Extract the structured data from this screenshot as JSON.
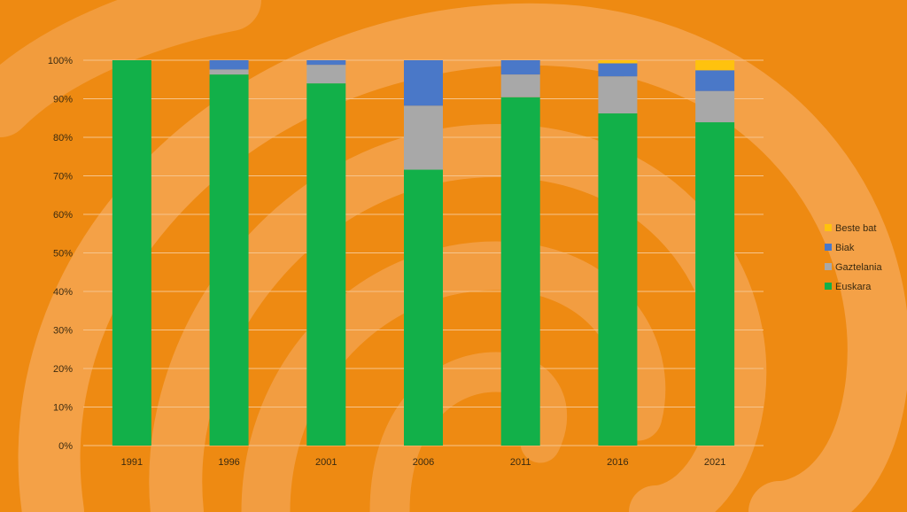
{
  "chart_data": {
    "type": "bar",
    "stacked": true,
    "categories": [
      "1991",
      "1996",
      "2001",
      "2006",
      "2011",
      "2016",
      "2021"
    ],
    "series": [
      {
        "name": "Euskara",
        "color": "#12b049",
        "values": [
          100,
          96.3,
          94.0,
          71.6,
          90.4,
          86.2,
          83.9
        ]
      },
      {
        "name": "Gaztelania",
        "color": "#a8a8a8",
        "values": [
          0,
          1.3,
          4.8,
          16.6,
          5.9,
          9.6,
          8.1
        ]
      },
      {
        "name": "Biak",
        "color": "#4a78c8",
        "values": [
          0,
          2.4,
          1.2,
          11.8,
          3.7,
          3.4,
          5.4
        ]
      },
      {
        "name": "Beste bat",
        "color": "#ffc20e",
        "values": [
          0,
          0,
          0,
          0,
          0,
          0.8,
          2.6
        ]
      }
    ],
    "yticks": [
      "0%",
      "10%",
      "20%",
      "30%",
      "40%",
      "50%",
      "60%",
      "70%",
      "80%",
      "90%",
      "100%"
    ],
    "ylim": [
      0,
      100
    ],
    "grid": true,
    "legend_position": "right",
    "legend_order": [
      "Beste bat",
      "Biak",
      "Gaztelania",
      "Euskara"
    ]
  },
  "colors": {
    "background": "#ee8a12",
    "swirl": "#f5a85a",
    "gridline": "#f6c48c",
    "text": "#3a2a10"
  }
}
